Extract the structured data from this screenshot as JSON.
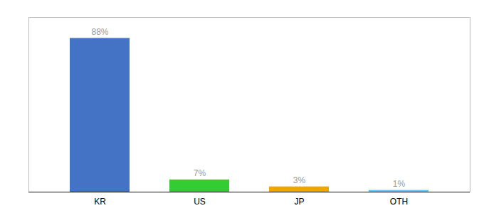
{
  "chart_data": {
    "type": "bar",
    "categories": [
      "KR",
      "US",
      "JP",
      "OTH"
    ],
    "values": [
      88,
      7,
      3,
      1
    ],
    "value_labels": [
      "88%",
      "7%",
      "3%",
      "1%"
    ],
    "colors": [
      "#4472c4",
      "#33cc33",
      "#f0a500",
      "#5bc8f5"
    ],
    "ylim": [
      0,
      100
    ],
    "data_labels": true,
    "tick_labels": "x",
    "grid": false
  }
}
